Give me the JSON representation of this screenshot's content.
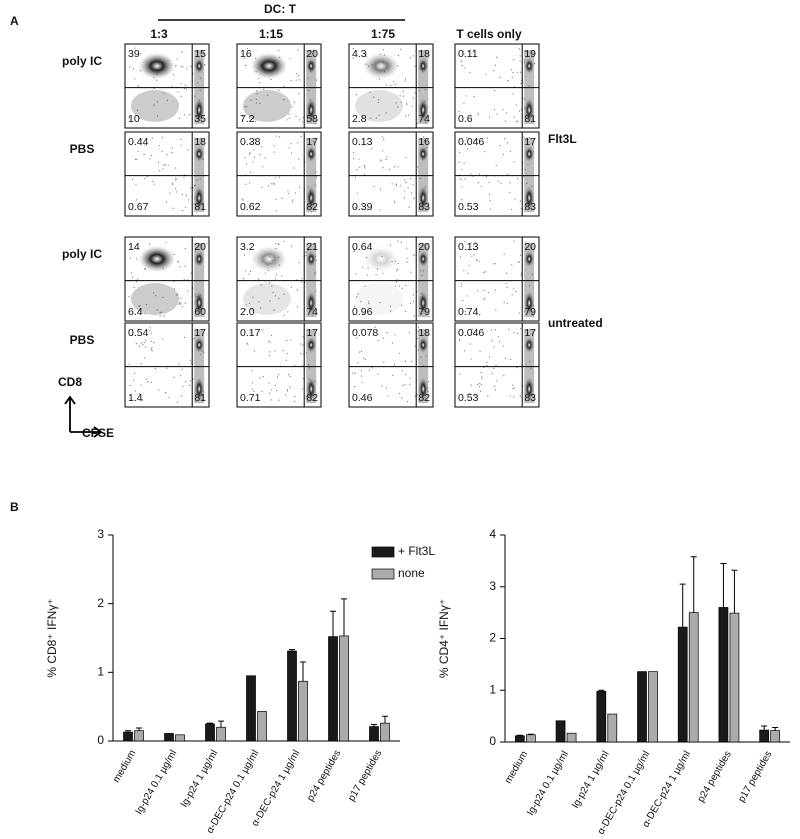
{
  "panel_labels": [
    "A",
    "B"
  ],
  "flow": {
    "header": "DC: T",
    "columns": [
      "1:3",
      "1:15",
      "1:75",
      "T cells only"
    ],
    "rows": [
      {
        "label": "poly IC",
        "panels": [
          [
            "39",
            "15",
            "10",
            "35"
          ],
          [
            "16",
            "20",
            "7.2",
            "58"
          ],
          [
            "4.3",
            "18",
            "2.8",
            "74"
          ],
          [
            "0.11",
            "19",
            "0.6",
            "81"
          ]
        ]
      },
      {
        "label": "PBS",
        "panels": [
          [
            "0.44",
            "18",
            "0.67",
            "81"
          ],
          [
            "0.38",
            "17",
            "0.62",
            "82"
          ],
          [
            "0.13",
            "16",
            "0.39",
            "83"
          ],
          [
            "0.046",
            "17",
            "0.53",
            "83"
          ]
        ]
      },
      {
        "label": "poly IC",
        "panels": [
          [
            "14",
            "20",
            "6.4",
            "60"
          ],
          [
            "3.2",
            "21",
            "2.0",
            "74"
          ],
          [
            "0.64",
            "20",
            "0.96",
            "79"
          ],
          [
            "0.13",
            "20",
            "0.74",
            "79"
          ]
        ]
      },
      {
        "label": "PBS",
        "panels": [
          [
            "0.54",
            "17",
            "1.4",
            "81"
          ],
          [
            "0.17",
            "17",
            "0.71",
            "82"
          ],
          [
            "0.078",
            "18",
            "0.46",
            "82"
          ],
          [
            "0.046",
            "17",
            "0.53",
            "83"
          ]
        ]
      }
    ],
    "groups": [
      "Flt3L",
      "untreated"
    ],
    "y_axis": "CD8",
    "x_axis": "CFSE"
  },
  "chart_data": [
    {
      "type": "bar",
      "ylabel": "% CD8⁺ IFNγ⁺",
      "categories": [
        "medium",
        "Ig-p24 0.1 µg/ml",
        "Ig-p24 1 µg/ml",
        "α-DEC-p24 0.1 µg/ml",
        "α-DEC-p24 1 µg/ml",
        "p24 peptides",
        "p17 peptides"
      ],
      "series": [
        {
          "name": "+ Flt3L",
          "color": "#1a1a1a",
          "values": [
            0.13,
            0.11,
            0.25,
            0.95,
            1.31,
            1.52,
            0.21
          ],
          "errors": [
            0.02,
            null,
            0.01,
            null,
            0.02,
            0.37,
            0.03
          ]
        },
        {
          "name": "none",
          "color": "#ababab",
          "values": [
            0.15,
            0.09,
            0.2,
            0.43,
            0.87,
            1.53,
            0.26
          ],
          "errors": [
            0.04,
            null,
            0.09,
            null,
            0.28,
            0.54,
            0.1
          ]
        }
      ],
      "ylim": [
        0,
        3
      ],
      "yticks": [
        0,
        1,
        2,
        3
      ],
      "legend": "upper right"
    },
    {
      "type": "bar",
      "ylabel": "% CD4⁺ IFNγ⁺",
      "categories": [
        "medium",
        "Ig-p24 0.1 µg/ml",
        "Ig-p24 1 µg/ml",
        "α-DEC-p24 0.1 µg/ml",
        "α-DEC-p24 1 µg/ml",
        "p24 peptides",
        "p17 peptides"
      ],
      "series": [
        {
          "name": "+ Flt3L",
          "color": "#1a1a1a",
          "values": [
            0.12,
            0.41,
            0.98,
            1.36,
            2.22,
            2.6,
            0.23
          ],
          "errors": [
            0.01,
            null,
            0.02,
            null,
            0.83,
            0.85,
            0.08
          ]
        },
        {
          "name": "none",
          "color": "#ababab",
          "values": [
            0.14,
            0.17,
            0.54,
            1.36,
            2.5,
            2.49,
            0.22
          ],
          "errors": [
            0.01,
            null,
            null,
            null,
            1.08,
            0.83,
            0.06
          ]
        }
      ],
      "ylim": [
        0,
        4
      ],
      "yticks": [
        0,
        1,
        2,
        3,
        4
      ],
      "legend": "none"
    }
  ]
}
